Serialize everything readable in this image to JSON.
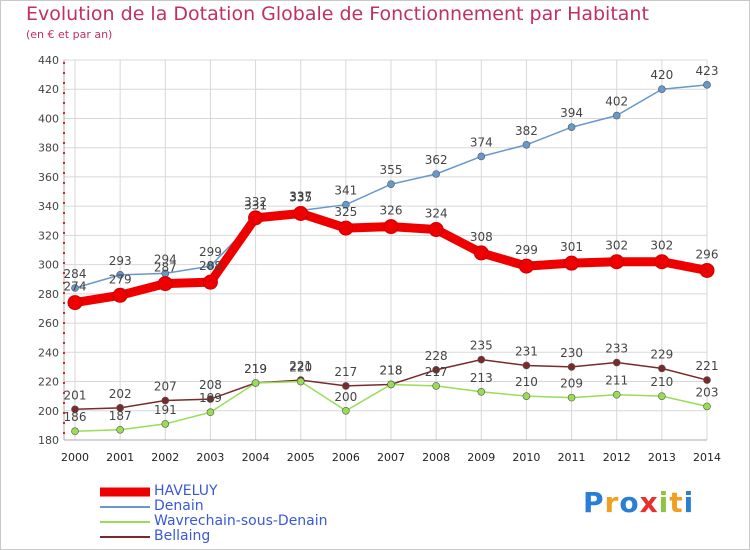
{
  "chart_data": {
    "type": "line",
    "title": "Evolution de la Dotation Globale de Fonctionnement par Habitant",
    "subtitle": "(en € et par an)",
    "x": [
      "2000",
      "2001",
      "2002",
      "2003",
      "2004",
      "2005",
      "2006",
      "2007",
      "2008",
      "2009",
      "2010",
      "2011",
      "2012",
      "2013",
      "2014"
    ],
    "ylim": [
      180,
      440
    ],
    "yticks": [
      "180",
      "200",
      "220",
      "240",
      "260",
      "280",
      "300",
      "320",
      "340",
      "360",
      "380",
      "400",
      "420",
      "440"
    ],
    "grid": true,
    "legend_position": "bottom-left",
    "series": [
      {
        "name": "HAVELUY",
        "color": "#ee0000",
        "values": [
          274,
          279,
          287,
          288,
          332,
          335,
          325,
          326,
          324,
          308,
          299,
          301,
          302,
          302,
          296
        ]
      },
      {
        "name": "Denain",
        "color": "#6699cc",
        "values": [
          284,
          293,
          294,
          299,
          331,
          337,
          341,
          355,
          362,
          374,
          382,
          394,
          402,
          420,
          423
        ]
      },
      {
        "name": "Wavrechain-sous-Denain",
        "color": "#99dd55",
        "values": [
          186,
          187,
          191,
          199,
          219,
          220,
          200,
          218,
          217,
          213,
          210,
          209,
          211,
          210,
          203
        ]
      },
      {
        "name": "Bellaing",
        "color": "#7a2a2a",
        "values": [
          201,
          202,
          207,
          208,
          219,
          221,
          217,
          218,
          228,
          235,
          231,
          230,
          233,
          229,
          221
        ]
      }
    ]
  },
  "brand": {
    "letters": [
      "P",
      "r",
      "o",
      "x",
      "i",
      "t",
      "i"
    ],
    "colors": [
      "#2a7fd4",
      "#f0a020",
      "#2a7fd4",
      "#e83030",
      "#8cc63f",
      "#f0a020",
      "#2a7fd4"
    ]
  }
}
